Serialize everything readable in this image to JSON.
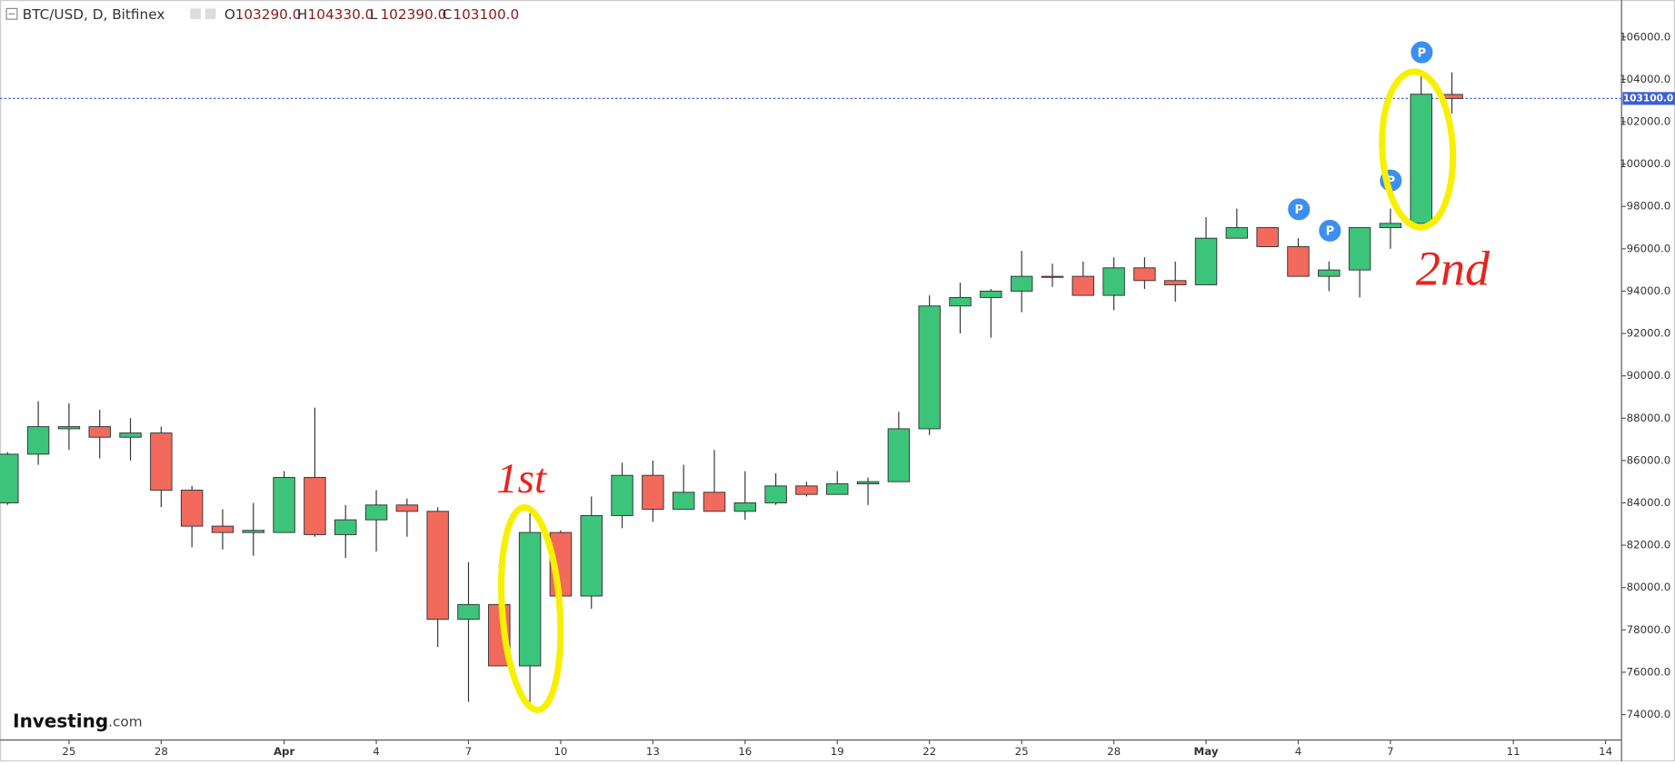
{
  "chart_data": {
    "type": "candlestick",
    "header": {
      "symbol": "BTC/USD, D, Bitfinex",
      "fields": [
        {
          "key": "O",
          "value": 103290,
          "label": "103290.0"
        },
        {
          "key": "H",
          "value": 104330,
          "label": "104330.0"
        },
        {
          "key": "L",
          "value": 102390,
          "label": "102390.0"
        },
        {
          "key": "C",
          "value": 103100,
          "label": "103100.0"
        }
      ]
    },
    "categories": [
      null,
      null,
      "25",
      null,
      null,
      "28",
      null,
      null,
      null,
      "Apr",
      null,
      null,
      "4",
      null,
      null,
      "7",
      null,
      null,
      "10",
      null,
      null,
      "13",
      null,
      null,
      "16",
      null,
      null,
      "19",
      null,
      null,
      "22",
      null,
      null,
      "25",
      null,
      null,
      "28",
      null,
      null,
      "May",
      null,
      null,
      "4",
      null,
      null,
      "7",
      null,
      null,
      null,
      "11",
      null,
      null,
      "14"
    ],
    "series": [
      {
        "name": "BTC/USD",
        "up_color": "#3cc47a",
        "down_color": "#f26a5c",
        "open": [
          84000,
          86300,
          87500,
          87600,
          87100,
          87300,
          84600,
          82900,
          82600,
          82600,
          85200,
          82500,
          83200,
          83900,
          83600,
          78500,
          79200,
          76300,
          82600,
          79600,
          83400,
          85300,
          83700,
          84500,
          83600,
          84000,
          84800,
          84400,
          84900,
          85000,
          87500,
          93300,
          93700,
          94000,
          94700,
          94700,
          93800,
          95100,
          94500,
          94300,
          96500,
          97000,
          96100,
          94700,
          95000,
          97000,
          97200,
          103290,
          null,
          null,
          null,
          null,
          null
        ],
        "high": [
          86400,
          88800,
          88700,
          88400,
          88000,
          87600,
          84800,
          83700,
          84000,
          85500,
          88500,
          83900,
          84600,
          84200,
          83800,
          81200,
          81100,
          83500,
          82700,
          84300,
          85900,
          86000,
          85800,
          86500,
          85500,
          85400,
          85000,
          85500,
          85200,
          88300,
          93800,
          94400,
          94100,
          95900,
          95300,
          95400,
          95600,
          95600,
          95400,
          97500,
          97900,
          97000,
          96500,
          95400,
          97000,
          97900,
          104300,
          104330,
          null,
          null,
          null,
          null,
          null
        ],
        "low": [
          83900,
          85800,
          86500,
          86100,
          86000,
          83800,
          81900,
          81800,
          81500,
          82600,
          82400,
          81400,
          81700,
          82400,
          77200,
          74600,
          76300,
          74600,
          78600,
          79000,
          82800,
          83100,
          83700,
          83600,
          83200,
          83900,
          84300,
          84400,
          83900,
          85000,
          87200,
          92000,
          91800,
          93000,
          94200,
          93800,
          93100,
          94100,
          93500,
          94300,
          96500,
          96100,
          94700,
          94000,
          93700,
          96000,
          97200,
          102390,
          null,
          null,
          null,
          null,
          null
        ],
        "close": [
          86300,
          87600,
          87600,
          87100,
          87300,
          84600,
          82900,
          82600,
          82700,
          85200,
          82500,
          83200,
          83900,
          83600,
          78500,
          79200,
          76300,
          82600,
          79600,
          83400,
          85300,
          83700,
          84500,
          83600,
          84000,
          84800,
          84400,
          84900,
          85000,
          87500,
          93300,
          93700,
          94000,
          94700,
          94650,
          93800,
          95100,
          94500,
          94300,
          96500,
          97000,
          96100,
          94700,
          95000,
          97000,
          97200,
          103300,
          103100,
          null,
          null,
          null,
          null,
          null
        ]
      }
    ],
    "ylim": [
      72800,
      107750
    ],
    "yticks": [
      {
        "value": 74000,
        "label": "74000.0"
      },
      {
        "value": 76000,
        "label": "76000.0"
      },
      {
        "value": 78000,
        "label": "78000.0"
      },
      {
        "value": 80000,
        "label": "80000.0"
      },
      {
        "value": 82000,
        "label": "82000.0"
      },
      {
        "value": 84000,
        "label": "84000.0"
      },
      {
        "value": 86000,
        "label": "86000.0"
      },
      {
        "value": 88000,
        "label": "88000.0"
      },
      {
        "value": 90000,
        "label": "90000.0"
      },
      {
        "value": 92000,
        "label": "92000.0"
      },
      {
        "value": 94000,
        "label": "94000.0"
      },
      {
        "value": 96000,
        "label": "96000.0"
      },
      {
        "value": 98000,
        "label": "98000.0"
      },
      {
        "value": 100000,
        "label": "100000.0"
      },
      {
        "value": 102000,
        "label": "102000.0"
      },
      {
        "value": 104000,
        "label": "104000.0"
      },
      {
        "value": 106000,
        "label": "106000.0"
      }
    ],
    "price_line": {
      "value": 103100,
      "label": "103100.0",
      "color": "#3c5fd8"
    },
    "event_markers": [
      "P",
      "P",
      "P",
      "P"
    ],
    "annotations": [
      "1st",
      "2nd"
    ],
    "logo": {
      "name": "Investing",
      "suffix": ".com"
    }
  }
}
